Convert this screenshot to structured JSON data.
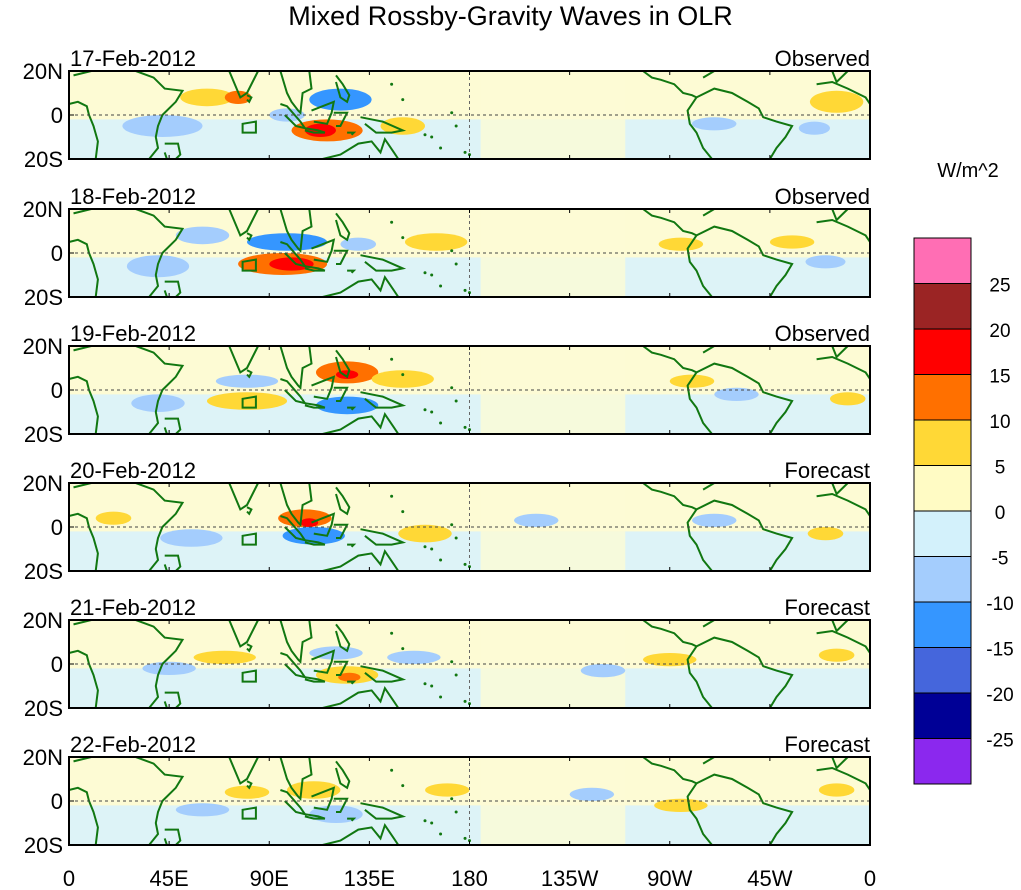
{
  "chart_data": {
    "type": "heatmap",
    "title": "Mixed Rossby-Gravity Waves in OLR",
    "units": "W/m^2",
    "x_ticks": [
      "0",
      "45E",
      "90E",
      "135E",
      "180",
      "135W",
      "90W",
      "45W",
      "0"
    ],
    "x_tick_lon": [
      0,
      45,
      90,
      135,
      180,
      225,
      270,
      315,
      360
    ],
    "y_ticks": [
      "20N",
      "0",
      "20S"
    ],
    "y_tick_lat": [
      20,
      0,
      -20
    ],
    "lon_range": [
      0,
      360
    ],
    "lat_range": [
      -20,
      20
    ],
    "colorbar": {
      "labels": [
        "25",
        "20",
        "15",
        "10",
        "5",
        "0",
        "-5",
        "-10",
        "-15",
        "-20",
        "-25"
      ],
      "colors": [
        "#ff6eb4",
        "#9b2424",
        "#ff0000",
        "#ff7000",
        "#ffd836",
        "#fffbc4",
        "#d3f1fb",
        "#a4cdfd",
        "#3596ff",
        "#4566dc",
        "#000096",
        "#8b28ee"
      ]
    },
    "panels": [
      {
        "date": "17-Feb-2012",
        "kind": "Observed",
        "anomalies": [
          {
            "lon": 62,
            "lat": 8,
            "rlon": 12,
            "rlat": 4,
            "v": 5
          },
          {
            "lon": 76,
            "lat": 8,
            "rlon": 6,
            "rlat": 3,
            "v": 10
          },
          {
            "lon": 122,
            "lat": 7,
            "rlon": 14,
            "rlat": 5,
            "v": -10
          },
          {
            "lon": 42,
            "lat": -5,
            "rlon": 18,
            "rlat": 5,
            "v": -5
          },
          {
            "lon": 116,
            "lat": -7,
            "rlon": 16,
            "rlat": 5,
            "v": 10
          },
          {
            "lon": 113,
            "lat": -7,
            "rlon": 7,
            "rlat": 3,
            "v": 15
          },
          {
            "lon": 150,
            "lat": -5,
            "rlon": 10,
            "rlat": 4,
            "v": 5
          },
          {
            "lon": 98,
            "lat": 0,
            "rlon": 8,
            "rlat": 3,
            "v": -5
          },
          {
            "lon": 345,
            "lat": 6,
            "rlon": 12,
            "rlat": 5,
            "v": 5
          },
          {
            "lon": 290,
            "lat": -4,
            "rlon": 10,
            "rlat": 3,
            "v": -5
          },
          {
            "lon": 335,
            "lat": -6,
            "rlon": 7,
            "rlat": 3,
            "v": -5
          }
        ]
      },
      {
        "date": "18-Feb-2012",
        "kind": "Observed",
        "anomalies": [
          {
            "lon": 98,
            "lat": 5,
            "rlon": 18,
            "rlat": 4,
            "v": -10
          },
          {
            "lon": 130,
            "lat": 4,
            "rlon": 8,
            "rlat": 3,
            "v": -5
          },
          {
            "lon": 96,
            "lat": -5,
            "rlon": 20,
            "rlat": 5,
            "v": 10
          },
          {
            "lon": 100,
            "lat": -5,
            "rlon": 10,
            "rlat": 3,
            "v": 15
          },
          {
            "lon": 165,
            "lat": 5,
            "rlon": 14,
            "rlat": 4,
            "v": 5
          },
          {
            "lon": 60,
            "lat": 8,
            "rlon": 12,
            "rlat": 4,
            "v": -5
          },
          {
            "lon": 325,
            "lat": 5,
            "rlon": 10,
            "rlat": 3,
            "v": 5
          },
          {
            "lon": 275,
            "lat": 4,
            "rlon": 10,
            "rlat": 3,
            "v": 5
          },
          {
            "lon": 340,
            "lat": -4,
            "rlon": 9,
            "rlat": 3,
            "v": -5
          },
          {
            "lon": 40,
            "lat": -6,
            "rlon": 14,
            "rlat": 5,
            "v": -5
          }
        ]
      },
      {
        "date": "19-Feb-2012",
        "kind": "Observed",
        "anomalies": [
          {
            "lon": 125,
            "lat": 8,
            "rlon": 14,
            "rlat": 5,
            "v": 10
          },
          {
            "lon": 125,
            "lat": 7,
            "rlon": 5,
            "rlat": 2,
            "v": 15
          },
          {
            "lon": 150,
            "lat": 5,
            "rlon": 14,
            "rlat": 4,
            "v": 5
          },
          {
            "lon": 80,
            "lat": 4,
            "rlon": 14,
            "rlat": 3,
            "v": -5
          },
          {
            "lon": 125,
            "lat": -7,
            "rlon": 14,
            "rlat": 4,
            "v": -10
          },
          {
            "lon": 80,
            "lat": -5,
            "rlon": 18,
            "rlat": 4,
            "v": 5
          },
          {
            "lon": 40,
            "lat": -6,
            "rlon": 12,
            "rlat": 4,
            "v": -5
          },
          {
            "lon": 280,
            "lat": 4,
            "rlon": 10,
            "rlat": 3,
            "v": 5
          },
          {
            "lon": 350,
            "lat": -4,
            "rlon": 8,
            "rlat": 3,
            "v": 5
          },
          {
            "lon": 300,
            "lat": -2,
            "rlon": 10,
            "rlat": 3,
            "v": -5
          }
        ]
      },
      {
        "date": "20-Feb-2012",
        "kind": "Forecast",
        "anomalies": [
          {
            "lon": 106,
            "lat": 4,
            "rlon": 12,
            "rlat": 4,
            "v": 10
          },
          {
            "lon": 108,
            "lat": 2,
            "rlon": 4,
            "rlat": 2,
            "v": 15
          },
          {
            "lon": 110,
            "lat": -4,
            "rlon": 14,
            "rlat": 4,
            "v": -10
          },
          {
            "lon": 160,
            "lat": -3,
            "rlon": 12,
            "rlat": 4,
            "v": 5
          },
          {
            "lon": 55,
            "lat": -5,
            "rlon": 14,
            "rlat": 4,
            "v": -5
          },
          {
            "lon": 20,
            "lat": 4,
            "rlon": 8,
            "rlat": 3,
            "v": 5
          },
          {
            "lon": 210,
            "lat": 3,
            "rlon": 10,
            "rlat": 3,
            "v": -5
          },
          {
            "lon": 340,
            "lat": -3,
            "rlon": 8,
            "rlat": 3,
            "v": 5
          },
          {
            "lon": 290,
            "lat": 3,
            "rlon": 10,
            "rlat": 3,
            "v": -5
          }
        ]
      },
      {
        "date": "21-Feb-2012",
        "kind": "Forecast",
        "anomalies": [
          {
            "lon": 70,
            "lat": 3,
            "rlon": 14,
            "rlat": 3,
            "v": 5
          },
          {
            "lon": 125,
            "lat": -5,
            "rlon": 14,
            "rlat": 4,
            "v": 5
          },
          {
            "lon": 126,
            "lat": -6,
            "rlon": 5,
            "rlat": 2,
            "v": 10
          },
          {
            "lon": 120,
            "lat": 5,
            "rlon": 12,
            "rlat": 3,
            "v": -5
          },
          {
            "lon": 155,
            "lat": 3,
            "rlon": 12,
            "rlat": 3,
            "v": -5
          },
          {
            "lon": 45,
            "lat": -2,
            "rlon": 12,
            "rlat": 3,
            "v": -5
          },
          {
            "lon": 270,
            "lat": 2,
            "rlon": 12,
            "rlat": 3,
            "v": 5
          },
          {
            "lon": 240,
            "lat": -3,
            "rlon": 10,
            "rlat": 3,
            "v": -5
          },
          {
            "lon": 345,
            "lat": 4,
            "rlon": 8,
            "rlat": 3,
            "v": 5
          }
        ]
      },
      {
        "date": "22-Feb-2012",
        "kind": "Forecast",
        "anomalies": [
          {
            "lon": 110,
            "lat": 5,
            "rlon": 12,
            "rlat": 4,
            "v": 5
          },
          {
            "lon": 120,
            "lat": -6,
            "rlon": 12,
            "rlat": 4,
            "v": -5
          },
          {
            "lon": 170,
            "lat": 5,
            "rlon": 10,
            "rlat": 3,
            "v": 5
          },
          {
            "lon": 60,
            "lat": -4,
            "rlon": 12,
            "rlat": 3,
            "v": -5
          },
          {
            "lon": 80,
            "lat": 4,
            "rlon": 10,
            "rlat": 3,
            "v": 5
          },
          {
            "lon": 275,
            "lat": -2,
            "rlon": 12,
            "rlat": 3,
            "v": 5
          },
          {
            "lon": 235,
            "lat": 3,
            "rlon": 10,
            "rlat": 3,
            "v": -5
          },
          {
            "lon": 345,
            "lat": 5,
            "rlon": 8,
            "rlat": 3,
            "v": 5
          }
        ]
      }
    ]
  }
}
